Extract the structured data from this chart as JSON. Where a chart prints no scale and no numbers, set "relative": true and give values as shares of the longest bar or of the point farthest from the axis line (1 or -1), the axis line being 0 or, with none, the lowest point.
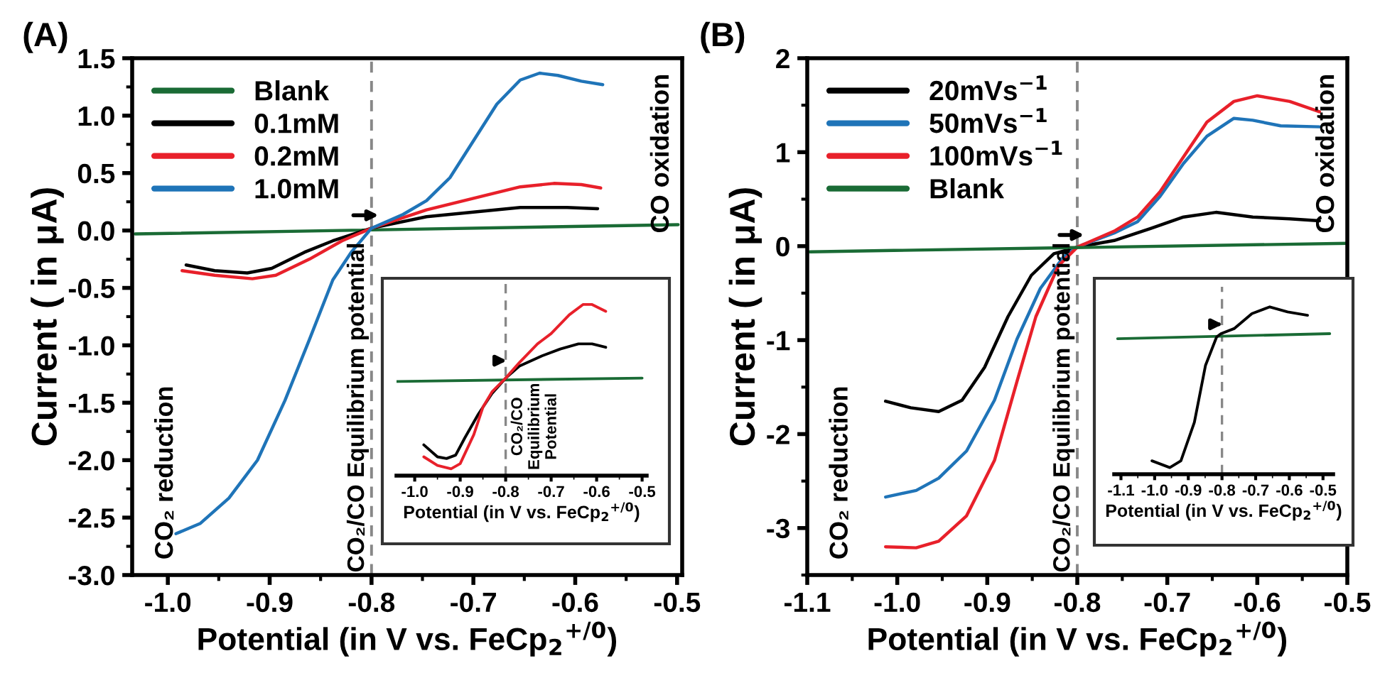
{
  "chart_data": [
    {
      "type": "line",
      "title": "(A)",
      "xlabel": "Potential (in V vs. FeCp$_{2}$$^{+/0}$)",
      "ylabel": "Current ( in μA)",
      "legend": "top left",
      "grid": false,
      "xlim": [
        -1.035,
        -0.495
      ],
      "ylim": [
        -3.0,
        1.5
      ],
      "xticks": [
        {
          "value": -1.0,
          "label": "-1.0"
        },
        {
          "value": -0.9,
          "label": "-0.9"
        },
        {
          "value": -0.8,
          "label": "-0.8"
        },
        {
          "value": -0.7,
          "label": "-0.7"
        },
        {
          "value": -0.6,
          "label": "-0.6"
        },
        {
          "value": -0.5,
          "label": "-0.5"
        }
      ],
      "yticks": [
        {
          "value": -3.0,
          "label": "-3.0"
        },
        {
          "value": -2.5,
          "label": "-2.5"
        },
        {
          "value": -2.0,
          "label": "-2.0"
        },
        {
          "value": -1.5,
          "label": "-1.5"
        },
        {
          "value": -1.0,
          "label": "-1.0"
        },
        {
          "value": -0.5,
          "label": "-0.5"
        },
        {
          "value": 0.0,
          "label": "0.0"
        },
        {
          "value": 0.5,
          "label": "0.5"
        },
        {
          "value": 1.0,
          "label": "1.0"
        },
        {
          "value": 1.5,
          "label": "1.5"
        }
      ],
      "ref_lines": [
        {
          "axis": "x",
          "value": -0.8,
          "label": "CO₂/CO Equilibrium potential",
          "color": "#888888",
          "line_style": "dashed"
        }
      ],
      "annotations": [
        "CO₂ reduction",
        "CO oxidation"
      ],
      "series": [
        {
          "name": "Blank",
          "color": "#1a6b35",
          "x": [
            -1.032,
            -0.499
          ],
          "values": [
            -0.03,
            0.05
          ]
        },
        {
          "name": "0.1mM",
          "color": "#000000",
          "x": [
            -0.982,
            -0.954,
            -0.922,
            -0.898,
            -0.866,
            -0.838,
            -0.8,
            -0.746,
            -0.7,
            -0.654,
            -0.608,
            -0.578
          ],
          "values": [
            -0.3,
            -0.35,
            -0.37,
            -0.33,
            -0.19,
            -0.09,
            0.02,
            0.12,
            0.16,
            0.2,
            0.2,
            0.19
          ]
        },
        {
          "name": "0.2mM",
          "color": "#e8202a",
          "x": [
            -0.986,
            -0.954,
            -0.917,
            -0.894,
            -0.861,
            -0.829,
            -0.8,
            -0.746,
            -0.7,
            -0.654,
            -0.621,
            -0.594,
            -0.575
          ],
          "values": [
            -0.35,
            -0.39,
            -0.42,
            -0.39,
            -0.25,
            -0.09,
            0.02,
            0.18,
            0.28,
            0.38,
            0.41,
            0.4,
            0.37
          ]
        },
        {
          "name": "1.0mM",
          "color": "#1f74b8",
          "x": [
            -0.992,
            -0.968,
            -0.94,
            -0.912,
            -0.885,
            -0.861,
            -0.838,
            -0.82,
            -0.8,
            -0.769,
            -0.746,
            -0.723,
            -0.7,
            -0.677,
            -0.654,
            -0.635,
            -0.617,
            -0.594,
            -0.573
          ],
          "values": [
            -2.64,
            -2.55,
            -2.33,
            -2.0,
            -1.48,
            -0.95,
            -0.43,
            -0.19,
            0.02,
            0.14,
            0.26,
            0.46,
            0.78,
            1.1,
            1.31,
            1.37,
            1.35,
            1.3,
            1.27
          ]
        }
      ]
    },
    {
      "type": "line",
      "relative": true,
      "tick_labels": "x",
      "xlabel": "Potential (in V vs. FeCp$_{2}$$^{+/0}$)",
      "xlim": [
        -1.04,
        -0.49
      ],
      "xticks": [
        {
          "value": -1.0,
          "label": "-1.0"
        },
        {
          "value": -0.9,
          "label": "-0.9"
        },
        {
          "value": -0.8,
          "label": "-0.8"
        },
        {
          "value": -0.7,
          "label": "-0.7"
        },
        {
          "value": -0.6,
          "label": "-0.6"
        },
        {
          "value": -0.5,
          "label": "-0.5"
        }
      ],
      "ref_lines": [
        {
          "axis": "x",
          "value": -0.8,
          "label": "CO₂/CO\nEquilibrium\nPotential",
          "color": "#888888",
          "line_style": "dashed"
        }
      ],
      "series": [
        {
          "color": "#1a6b35",
          "x": [
            -1.04,
            -0.5
          ],
          "values": [
            0.55,
            0.57
          ]
        },
        {
          "color": "#000000",
          "x": [
            -0.98,
            -0.95,
            -0.93,
            -0.91,
            -0.89,
            -0.86,
            -0.83,
            -0.8,
            -0.77,
            -0.72,
            -0.68,
            -0.64,
            -0.61,
            -0.58
          ],
          "values": [
            0.18,
            0.11,
            0.1,
            0.12,
            0.22,
            0.36,
            0.48,
            0.57,
            0.64,
            0.7,
            0.74,
            0.77,
            0.77,
            0.75
          ]
        },
        {
          "color": "#e8202a",
          "x": [
            -0.98,
            -0.95,
            -0.92,
            -0.9,
            -0.87,
            -0.85,
            -0.83,
            -0.8,
            -0.77,
            -0.73,
            -0.7,
            -0.66,
            -0.63,
            -0.61,
            -0.58
          ],
          "values": [
            0.11,
            0.06,
            0.04,
            0.07,
            0.24,
            0.4,
            0.49,
            0.57,
            0.66,
            0.77,
            0.83,
            0.94,
            1.0,
            1.0,
            0.96
          ]
        }
      ]
    },
    {
      "type": "line",
      "title": "(B)",
      "xlabel": "Potential (in V vs. FeCp$_{2}$$^{+/0}$)",
      "ylabel": "Current ( in μA)",
      "legend": "top left",
      "grid": false,
      "xlim": [
        -1.1,
        -0.5
      ],
      "ylim": [
        -3.5,
        2
      ],
      "xticks": [
        {
          "value": -1.1,
          "label": "-1.1"
        },
        {
          "value": -1.0,
          "label": "-1.0"
        },
        {
          "value": -0.9,
          "label": "-0.9"
        },
        {
          "value": -0.8,
          "label": "-0.8"
        },
        {
          "value": -0.7,
          "label": "-0.7"
        },
        {
          "value": -0.6,
          "label": "-0.6"
        },
        {
          "value": -0.5,
          "label": "-0.5"
        }
      ],
      "yticks": [
        {
          "value": -3,
          "label": "-3"
        },
        {
          "value": -2,
          "label": "-2"
        },
        {
          "value": -1,
          "label": "-1"
        },
        0,
        1,
        2
      ],
      "ref_lines": [
        {
          "axis": "x",
          "value": -0.8,
          "label": "CO₂/CO Equilibrium potential",
          "color": "#888888",
          "line_style": "dashed"
        }
      ],
      "annotations": [
        "CO₂ reduction",
        "CO oxidation"
      ],
      "series": [
        {
          "name": "20mVs$^{−1}$",
          "color": "#000000",
          "x": [
            -1.013,
            -0.985,
            -0.954,
            -0.928,
            -0.903,
            -0.877,
            -0.851,
            -0.826,
            -0.8,
            -0.759,
            -0.718,
            -0.682,
            -0.646,
            -0.605,
            -0.564,
            -0.531
          ],
          "values": [
            -1.65,
            -1.72,
            -1.76,
            -1.64,
            -1.29,
            -0.75,
            -0.31,
            -0.08,
            -0.01,
            0.06,
            0.19,
            0.31,
            0.36,
            0.31,
            0.29,
            0.27
          ]
        },
        {
          "name": "50mVs$^{−1}$",
          "color": "#1f74b8",
          "x": [
            -1.013,
            -0.979,
            -0.954,
            -0.923,
            -0.892,
            -0.867,
            -0.841,
            -0.815,
            -0.8,
            -0.759,
            -0.733,
            -0.708,
            -0.682,
            -0.656,
            -0.626,
            -0.605,
            -0.574,
            -0.531
          ],
          "values": [
            -2.67,
            -2.6,
            -2.47,
            -2.18,
            -1.64,
            -0.99,
            -0.45,
            -0.11,
            -0.01,
            0.14,
            0.26,
            0.53,
            0.88,
            1.17,
            1.36,
            1.34,
            1.28,
            1.27
          ]
        },
        {
          "name": "100mVs$^{−1}$",
          "color": "#e8202a",
          "x": [
            -1.013,
            -0.979,
            -0.954,
            -0.923,
            -0.892,
            -0.867,
            -0.846,
            -0.821,
            -0.8,
            -0.759,
            -0.733,
            -0.708,
            -0.682,
            -0.656,
            -0.626,
            -0.6,
            -0.564,
            -0.531
          ],
          "values": [
            -3.2,
            -3.21,
            -3.14,
            -2.87,
            -2.28,
            -1.44,
            -0.75,
            -0.21,
            -0.01,
            0.16,
            0.31,
            0.58,
            0.95,
            1.32,
            1.54,
            1.6,
            1.54,
            1.43
          ]
        },
        {
          "name": "Blank",
          "color": "#1a6b35",
          "x": [
            -1.097,
            -0.5
          ],
          "values": [
            -0.06,
            0.03
          ]
        }
      ]
    },
    {
      "type": "line",
      "relative": true,
      "tick_labels": "x",
      "xlabel": "Potential (in V vs. FeCp$_{2}$$^{+/0}$)",
      "xlim": [
        -1.12,
        -0.47
      ],
      "xticks": [
        {
          "value": -1.1,
          "label": "-1.1"
        },
        {
          "value": -1.0,
          "label": "-1.0"
        },
        {
          "value": -0.9,
          "label": "-0.9"
        },
        {
          "value": -0.8,
          "label": "-0.8"
        },
        {
          "value": -0.7,
          "label": "-0.7"
        },
        {
          "value": -0.6,
          "label": "-0.6"
        },
        {
          "value": -0.5,
          "label": "-0.5"
        }
      ],
      "ref_lines": [
        {
          "axis": "x",
          "value": -0.8,
          "color": "#888888",
          "line_style": "dashed"
        }
      ],
      "series": [
        {
          "color": "#1a6b35",
          "x": [
            -1.11,
            -0.48
          ],
          "values": [
            0.81,
            0.84
          ]
        },
        {
          "color": "#000000",
          "x": [
            -1.008,
            -0.955,
            -0.922,
            -0.882,
            -0.849,
            -0.816,
            -0.803,
            -0.764,
            -0.711,
            -0.658,
            -0.605,
            -0.546
          ],
          "values": [
            0.08,
            0.04,
            0.08,
            0.31,
            0.65,
            0.82,
            0.84,
            0.87,
            0.96,
            1.0,
            0.97,
            0.95
          ]
        }
      ]
    }
  ]
}
